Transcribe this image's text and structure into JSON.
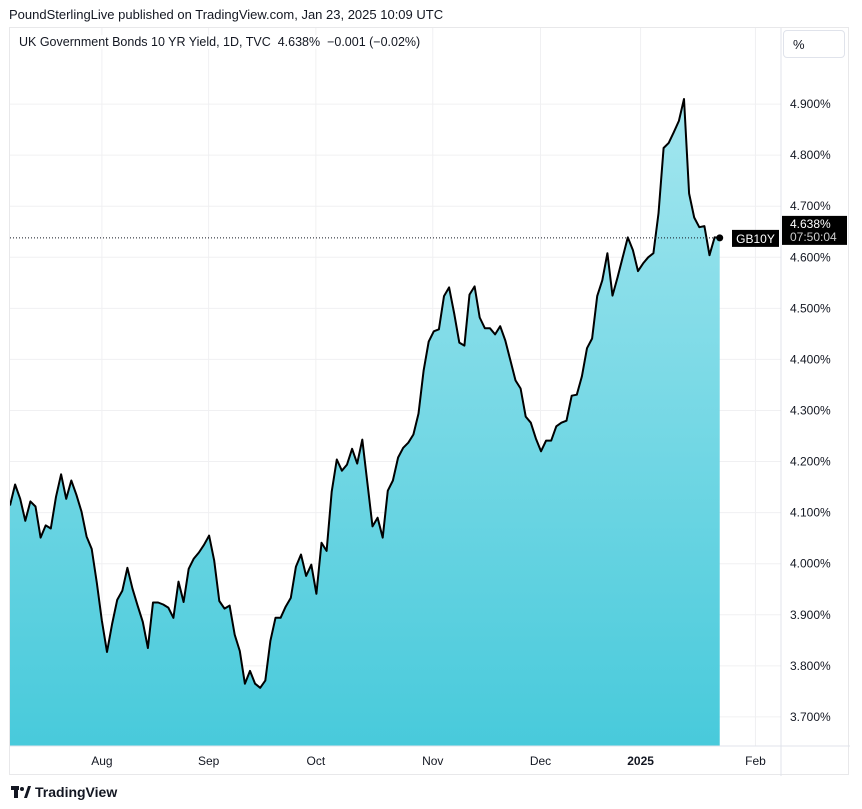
{
  "published": "PoundSterlingLive published on TradingView.com, Jan 23, 2025 10:09 UTC",
  "legend": {
    "symbol": "UK Government Bonds 10 YR Yield, 1D, TVC",
    "last": "4.638%",
    "change": "−0.001 (−0.02%)"
  },
  "scale_button": "%",
  "footer_logo": "TradingView",
  "price_tag": {
    "ticker": "GB10Y",
    "price": "4.638%",
    "countdown": "07:50:04"
  },
  "colors": {
    "line": "#000000",
    "fill_top": "#a3e6ef",
    "fill_bottom": "#48cadb",
    "grid": "#f0f0f2"
  },
  "chart_data": {
    "type": "area",
    "title": "UK Government Bonds 10 YR Yield, 1D, TVC",
    "xlabel": "",
    "ylabel": "",
    "ylim": [
      3.643,
      5.049
    ],
    "xlim": [
      0,
      151
    ],
    "grid": true,
    "x_ticks": [
      {
        "label": "Aug",
        "index": 18
      },
      {
        "label": "Sep",
        "index": 38.9
      },
      {
        "label": "Oct",
        "index": 59.9
      },
      {
        "label": "Nov",
        "index": 82.8
      },
      {
        "label": "Dec",
        "index": 103.9
      },
      {
        "label": "2025",
        "index": 123.5,
        "bold": true
      },
      {
        "label": "Feb",
        "index": 146
      }
    ],
    "y_ticks": [
      "3.700%",
      "3.800%",
      "3.900%",
      "4.000%",
      "4.100%",
      "4.200%",
      "4.300%",
      "4.400%",
      "4.500%",
      "4.600%",
      "4.700%",
      "4.800%",
      "4.900%"
    ],
    "values": [
      4.114,
      4.155,
      4.127,
      4.084,
      4.122,
      4.112,
      4.051,
      4.075,
      4.069,
      4.131,
      4.175,
      4.127,
      4.163,
      4.135,
      4.102,
      4.053,
      4.029,
      3.963,
      3.888,
      3.827,
      3.882,
      3.929,
      3.947,
      3.992,
      3.951,
      3.918,
      3.886,
      3.835,
      3.924,
      3.924,
      3.92,
      3.914,
      3.894,
      3.965,
      3.925,
      3.99,
      4.01,
      4.022,
      4.037,
      4.055,
      4.006,
      3.927,
      3.912,
      3.918,
      3.861,
      3.829,
      3.765,
      3.79,
      3.765,
      3.757,
      3.771,
      3.849,
      3.894,
      3.894,
      3.916,
      3.933,
      3.994,
      4.018,
      3.976,
      3.998,
      3.941,
      4.041,
      4.025,
      4.141,
      4.204,
      4.182,
      4.194,
      4.225,
      4.196,
      4.243,
      4.158,
      4.073,
      4.09,
      4.051,
      4.143,
      4.163,
      4.208,
      4.227,
      4.237,
      4.253,
      4.294,
      4.378,
      4.435,
      4.455,
      4.459,
      4.524,
      4.541,
      4.49,
      4.433,
      4.427,
      4.527,
      4.543,
      4.482,
      4.461,
      4.461,
      4.449,
      4.465,
      4.437,
      4.398,
      4.359,
      4.343,
      4.288,
      4.276,
      4.245,
      4.22,
      4.241,
      4.241,
      4.269,
      4.276,
      4.28,
      4.329,
      4.331,
      4.367,
      4.422,
      4.441,
      4.524,
      4.555,
      4.608,
      4.525,
      4.561,
      4.6,
      4.639,
      4.614,
      4.573,
      4.588,
      4.6,
      4.608,
      4.686,
      4.814,
      4.824,
      4.845,
      4.867,
      4.91,
      4.725,
      4.678,
      4.659,
      4.661,
      4.604,
      4.639,
      4.638
    ],
    "last_value": 4.638
  }
}
